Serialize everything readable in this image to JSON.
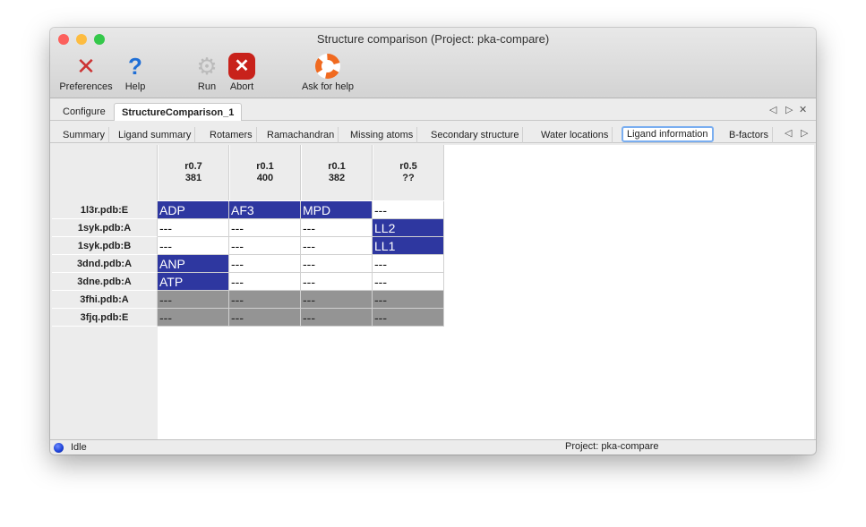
{
  "window": {
    "title": "Structure comparison (Project: pka-compare)"
  },
  "toolbar": [
    {
      "label": "Preferences",
      "icon": "wrench-screwdriver-icon"
    },
    {
      "label": "Help",
      "icon": "question-icon"
    },
    {
      "label": "Run",
      "icon": "gear-icon"
    },
    {
      "label": "Abort",
      "icon": "abort-icon"
    },
    {
      "label": "Ask for help",
      "icon": "lifebuoy-icon"
    }
  ],
  "tabs": [
    {
      "label": "Configure"
    },
    {
      "label": "StructureComparison_1",
      "active": true
    }
  ],
  "subtabs": [
    "Summary",
    "Ligand summary",
    "Rotamers",
    "Ramachandran",
    "Missing atoms",
    "Secondary structure",
    "Water locations",
    "Ligand information",
    "B-factors"
  ],
  "active_subtab": "Ligand information",
  "table": {
    "columns": [
      {
        "line1": "r0.7",
        "line2": "381"
      },
      {
        "line1": "r0.1",
        "line2": "400"
      },
      {
        "line1": "r0.1",
        "line2": "382"
      },
      {
        "line1": "r0.5",
        "line2": "??"
      }
    ],
    "rows": [
      {
        "label": "1l3r.pdb:E",
        "cells": [
          {
            "text": "ADP",
            "style": "blue"
          },
          {
            "text": "AF3",
            "style": "blue"
          },
          {
            "text": "MPD",
            "style": "blue"
          },
          {
            "text": "---",
            "style": "white"
          }
        ]
      },
      {
        "label": "1syk.pdb:A",
        "cells": [
          {
            "text": "---",
            "style": "white"
          },
          {
            "text": "---",
            "style": "white"
          },
          {
            "text": "---",
            "style": "white"
          },
          {
            "text": "LL2",
            "style": "blue"
          }
        ]
      },
      {
        "label": "1syk.pdb:B",
        "cells": [
          {
            "text": "---",
            "style": "white"
          },
          {
            "text": "---",
            "style": "white"
          },
          {
            "text": "---",
            "style": "white"
          },
          {
            "text": "LL1",
            "style": "blue"
          }
        ]
      },
      {
        "label": "3dnd.pdb:A",
        "cells": [
          {
            "text": "ANP",
            "style": "blue"
          },
          {
            "text": "---",
            "style": "white"
          },
          {
            "text": "---",
            "style": "white"
          },
          {
            "text": "---",
            "style": "white"
          }
        ]
      },
      {
        "label": "3dne.pdb:A",
        "cells": [
          {
            "text": "ATP",
            "style": "blue"
          },
          {
            "text": "---",
            "style": "white"
          },
          {
            "text": "---",
            "style": "white"
          },
          {
            "text": "---",
            "style": "white"
          }
        ]
      },
      {
        "label": "3fhi.pdb:A",
        "cells": [
          {
            "text": "---",
            "style": "gray"
          },
          {
            "text": "---",
            "style": "gray"
          },
          {
            "text": "---",
            "style": "gray"
          },
          {
            "text": "---",
            "style": "gray"
          }
        ]
      },
      {
        "label": "3fjq.pdb:E",
        "cells": [
          {
            "text": "---",
            "style": "gray"
          },
          {
            "text": "---",
            "style": "gray"
          },
          {
            "text": "---",
            "style": "gray"
          },
          {
            "text": "---",
            "style": "gray"
          }
        ]
      }
    ]
  },
  "status": {
    "state": "Idle",
    "project": "Project: pka-compare"
  },
  "colors": {
    "match": "#2e37a0",
    "missing": "#949494",
    "status_dot": "#1a3fd6"
  }
}
